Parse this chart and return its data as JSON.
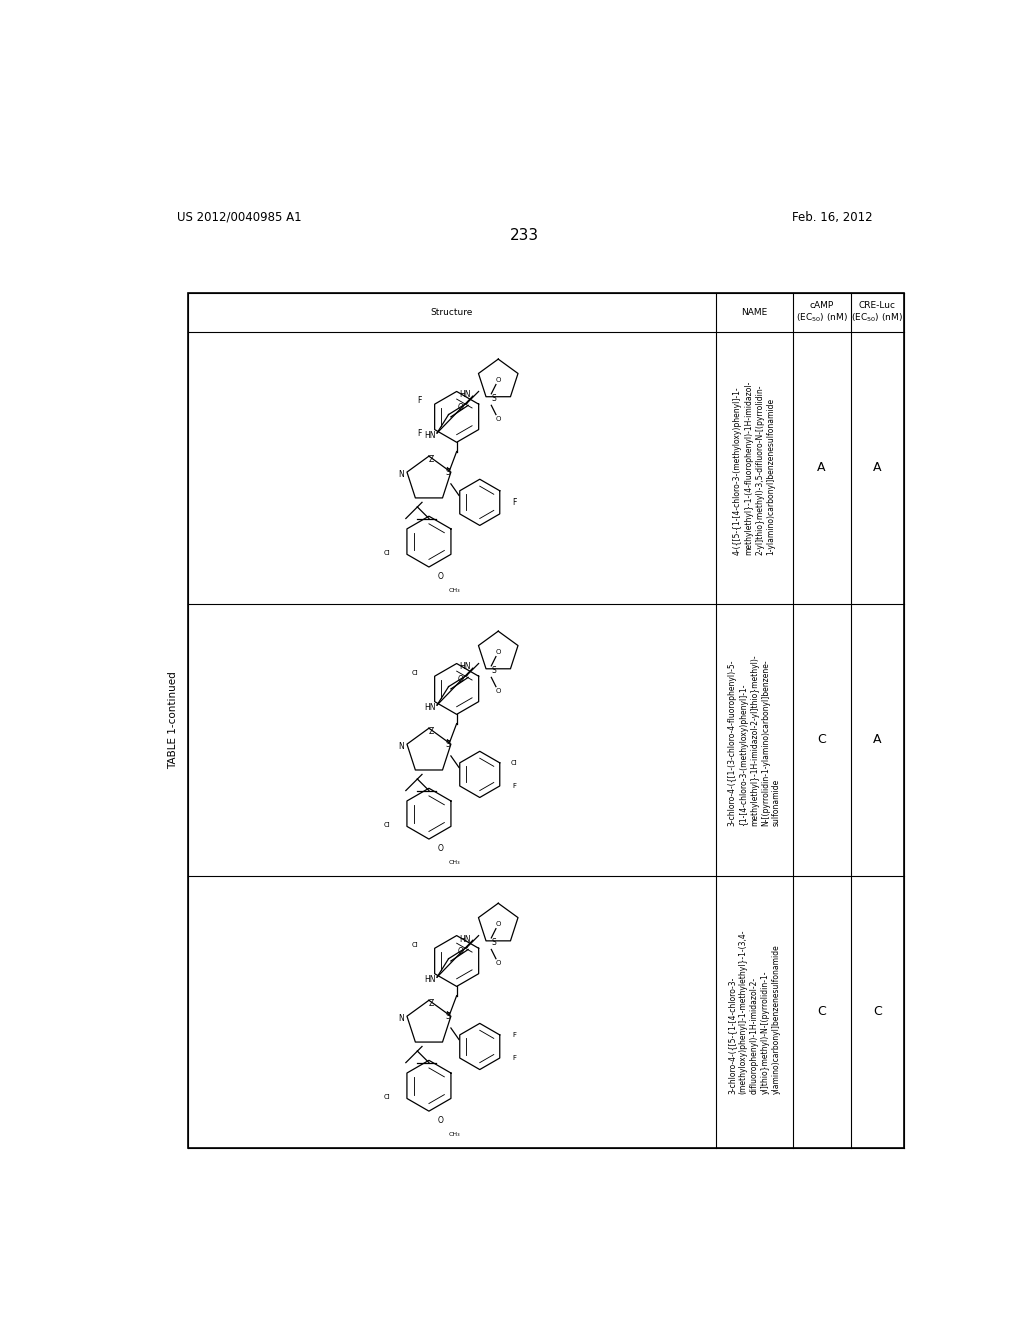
{
  "page_number": "233",
  "patent_number": "US 2012/0040985 A1",
  "patent_date": "Feb. 16, 2012",
  "table_title": "TABLE 1-continued",
  "background_color": "#ffffff",
  "text_color": "#000000",
  "rows": [
    {
      "name": "4-({[5-{1-[4-chloro-3-(methyloxy)phenyl]-1-\nmethylethyl}-1-(4-fluorophenyl)-1H-imidazol-\n2-yl]thio}methyl)-3,5-difluoro-N-[(pyrrolidin-\n1-ylamino)carbonyl]benzenesulfonamide",
      "camp": "A",
      "cre_luc": "A"
    },
    {
      "name": "3-chloro-4-({[1-(3-chloro-4-fluorophenyl)-5-\n{1-[4-chloro-3-(methyloxy)phenyl]-1-\nmethylethyl}-1H-imidazol-2-yl]thio}methyl)-\nN-[(pyrrolidin-1-ylamino)carbonyl]benzene-\nsulfonamide",
      "camp": "C",
      "cre_luc": "A"
    },
    {
      "name": "3-chloro-4-({[5-{1-[4-chloro-3-\n(methyloxy)phenyl]-1-methylethyl}-1-(3,4-\ndifluorophenyl)-1H-imidazol-2-\nyl]thio}methyl)-N-[(pyrrolidin-1-\nylamino)carbonyl]benzenesulfonamide",
      "camp": "C",
      "cre_luc": "C"
    }
  ]
}
